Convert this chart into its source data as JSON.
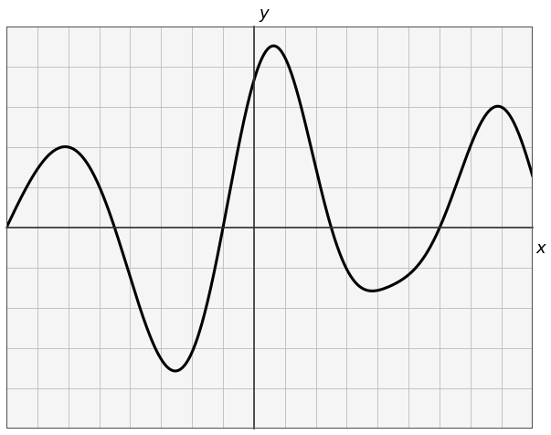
{
  "title": "",
  "xlabel": "x",
  "ylabel": "y",
  "xlim": [
    -8,
    9
  ],
  "ylim": [
    -5,
    5
  ],
  "grid_major": true,
  "background_color": "#ffffff",
  "plot_bg_color": "#f5f5f5",
  "line_color": "#000000",
  "line_width": 2.2,
  "x_start": -8,
  "x_end": 9,
  "grid_color": "#bbbbbb",
  "border_color": "#333333"
}
